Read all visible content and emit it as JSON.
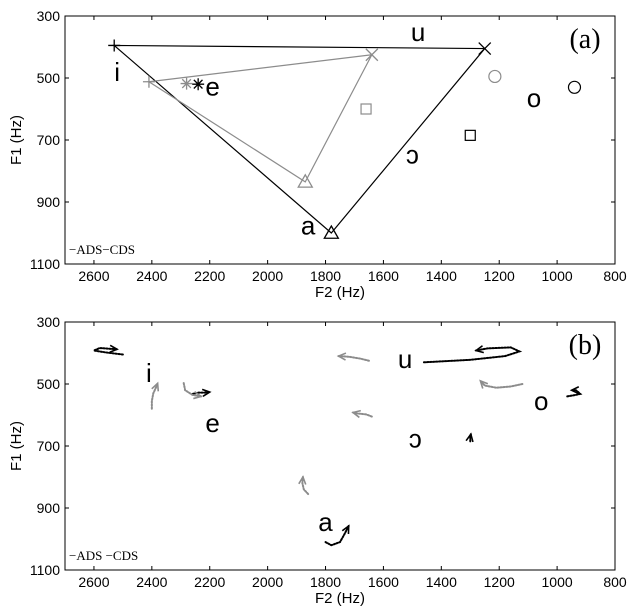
{
  "chart_data": [
    {
      "type": "scatter",
      "panel_label": "(a)",
      "xlabel": "F2 (Hz)",
      "ylabel": "F1 (Hz)",
      "xlim": [
        2700,
        800
      ],
      "ylim": [
        1100,
        300
      ],
      "x_inverted": true,
      "y_inverted": true,
      "xticks": [
        2600,
        2400,
        2200,
        2000,
        1800,
        1600,
        1400,
        1200,
        1000,
        800
      ],
      "yticks": [
        300,
        500,
        700,
        900,
        1100
      ],
      "legend_text": "−ADS−CDS",
      "colors": {
        "ads": "#000000",
        "cds": "#8c8c8c"
      },
      "vowel_labels": [
        {
          "text": "u",
          "x": 1480,
          "y": 352
        },
        {
          "text": "i",
          "x": 2520,
          "y": 480
        },
        {
          "text": "e",
          "x": 2190,
          "y": 528
        },
        {
          "text": "o",
          "x": 1080,
          "y": 565
        },
        {
          "text": "ɔ",
          "x": 1500,
          "y": 747
        },
        {
          "text": "a",
          "x": 1860,
          "y": 975
        }
      ],
      "series": [
        {
          "name": "ADS",
          "markers": [
            {
              "vowel": "i",
              "x": 2530,
              "y": 395,
              "marker": "plus"
            },
            {
              "vowel": "u",
              "x": 1250,
              "y": 405,
              "marker": "x"
            },
            {
              "vowel": "a",
              "x": 1780,
              "y": 1000,
              "marker": "triangle"
            },
            {
              "vowel": "e",
              "x": 2240,
              "y": 520,
              "marker": "star"
            },
            {
              "vowel": "o",
              "x": 940,
              "y": 530,
              "marker": "circle"
            },
            {
              "vowel": "ɔ",
              "x": 1300,
              "y": 685,
              "marker": "square"
            }
          ],
          "triangle": [
            [
              2530,
              395
            ],
            [
              1250,
              405
            ],
            [
              1780,
              1000
            ]
          ]
        },
        {
          "name": "CDS",
          "markers": [
            {
              "vowel": "i",
              "x": 2410,
              "y": 512,
              "marker": "plus"
            },
            {
              "vowel": "u",
              "x": 1640,
              "y": 425,
              "marker": "x"
            },
            {
              "vowel": "a",
              "x": 1870,
              "y": 835,
              "marker": "triangle"
            },
            {
              "vowel": "e",
              "x": 2280,
              "y": 518,
              "marker": "star"
            },
            {
              "vowel": "o",
              "x": 1215,
              "y": 495,
              "marker": "circle"
            },
            {
              "vowel": "ɔ",
              "x": 1660,
              "y": 600,
              "marker": "square"
            }
          ],
          "triangle": [
            [
              2410,
              512
            ],
            [
              1640,
              425
            ],
            [
              1870,
              835
            ]
          ]
        }
      ]
    },
    {
      "type": "line",
      "panel_label": "(b)",
      "xlabel": "F2 (Hz)",
      "ylabel": "F1 (Hz)",
      "xlim": [
        2700,
        800
      ],
      "ylim": [
        1100,
        300
      ],
      "x_inverted": true,
      "y_inverted": true,
      "xticks": [
        2600,
        2400,
        2200,
        2000,
        1800,
        1600,
        1400,
        1200,
        1000,
        800
      ],
      "yticks": [
        300,
        500,
        700,
        900,
        1100
      ],
      "legend_text": "−ADS −CDS",
      "colors": {
        "ads": "#000000",
        "cds": "#8c8c8c"
      },
      "vowel_labels": [
        {
          "text": "i",
          "x": 2410,
          "y": 465
        },
        {
          "text": "u",
          "x": 1525,
          "y": 420
        },
        {
          "text": "o",
          "x": 1055,
          "y": 555
        },
        {
          "text": "e",
          "x": 2190,
          "y": 625
        },
        {
          "text": "ɔ",
          "x": 1490,
          "y": 675
        },
        {
          "text": "a",
          "x": 1800,
          "y": 945
        }
      ],
      "series": [
        {
          "name": "ADS",
          "trajectories": [
            {
              "vowel": "i",
              "points": [
                [
                  2500,
                  405
                ],
                [
                  2560,
                  398
                ],
                [
                  2600,
                  392
                ],
                [
                  2580,
                  384
                ],
                [
                  2520,
                  388
                ]
              ]
            },
            {
              "vowel": "u",
              "points": [
                [
                  1460,
                  430
                ],
                [
                  1300,
                  422
                ],
                [
                  1180,
                  410
                ],
                [
                  1130,
                  395
                ],
                [
                  1160,
                  382
                ],
                [
                  1240,
                  385
                ],
                [
                  1280,
                  392
                ]
              ]
            },
            {
              "vowel": "e",
              "points": [
                [
                  2260,
                  532
                ],
                [
                  2240,
                  528
                ],
                [
                  2220,
                  528
                ],
                [
                  2200,
                  526
                ]
              ]
            },
            {
              "vowel": "o",
              "points": [
                [
                  965,
                  540
                ],
                [
                  935,
                  535
                ],
                [
                  920,
                  532
                ],
                [
                  935,
                  520
                ],
                [
                  950,
                  520
                ]
              ]
            },
            {
              "vowel": "ɔ",
              "points": [
                [
                  1300,
                  685
                ],
                [
                  1300,
                  672
                ],
                [
                  1298,
                  662
                ]
              ]
            },
            {
              "vowel": "a",
              "points": [
                [
                  1800,
                  1010
                ],
                [
                  1780,
                  1020
                ],
                [
                  1750,
                  1010
                ],
                [
                  1735,
                  985
                ],
                [
                  1720,
                  958
                ]
              ]
            }
          ]
        },
        {
          "name": "CDS",
          "trajectories": [
            {
              "vowel": "i",
              "points": [
                [
                  2400,
                  580
                ],
                [
                  2400,
                  555
                ],
                [
                  2395,
                  530
                ],
                [
                  2385,
                  510
                ],
                [
                  2380,
                  498
                ]
              ]
            },
            {
              "vowel": "u",
              "points": [
                [
                  1650,
                  425
                ],
                [
                  1680,
                  418
                ],
                [
                  1720,
                  412
                ],
                [
                  1755,
                  410
                ]
              ]
            },
            {
              "vowel": "e",
              "points": [
                [
                  2290,
                  497
                ],
                [
                  2285,
                  520
                ],
                [
                  2260,
                  535
                ],
                [
                  2230,
                  540
                ]
              ]
            },
            {
              "vowel": "o",
              "points": [
                [
                  1120,
                  500
                ],
                [
                  1160,
                  508
                ],
                [
                  1210,
                  512
                ],
                [
                  1250,
                  505
                ],
                [
                  1265,
                  490
                ]
              ]
            },
            {
              "vowel": "ɔ",
              "points": [
                [
                  1640,
                  605
                ],
                [
                  1660,
                  598
                ],
                [
                  1690,
                  595
                ],
                [
                  1705,
                  592
                ]
              ]
            },
            {
              "vowel": "a",
              "points": [
                [
                  1860,
                  855
                ],
                [
                  1875,
                  840
                ],
                [
                  1880,
                  820
                ],
                [
                  1878,
                  800
                ]
              ]
            }
          ]
        }
      ]
    }
  ]
}
